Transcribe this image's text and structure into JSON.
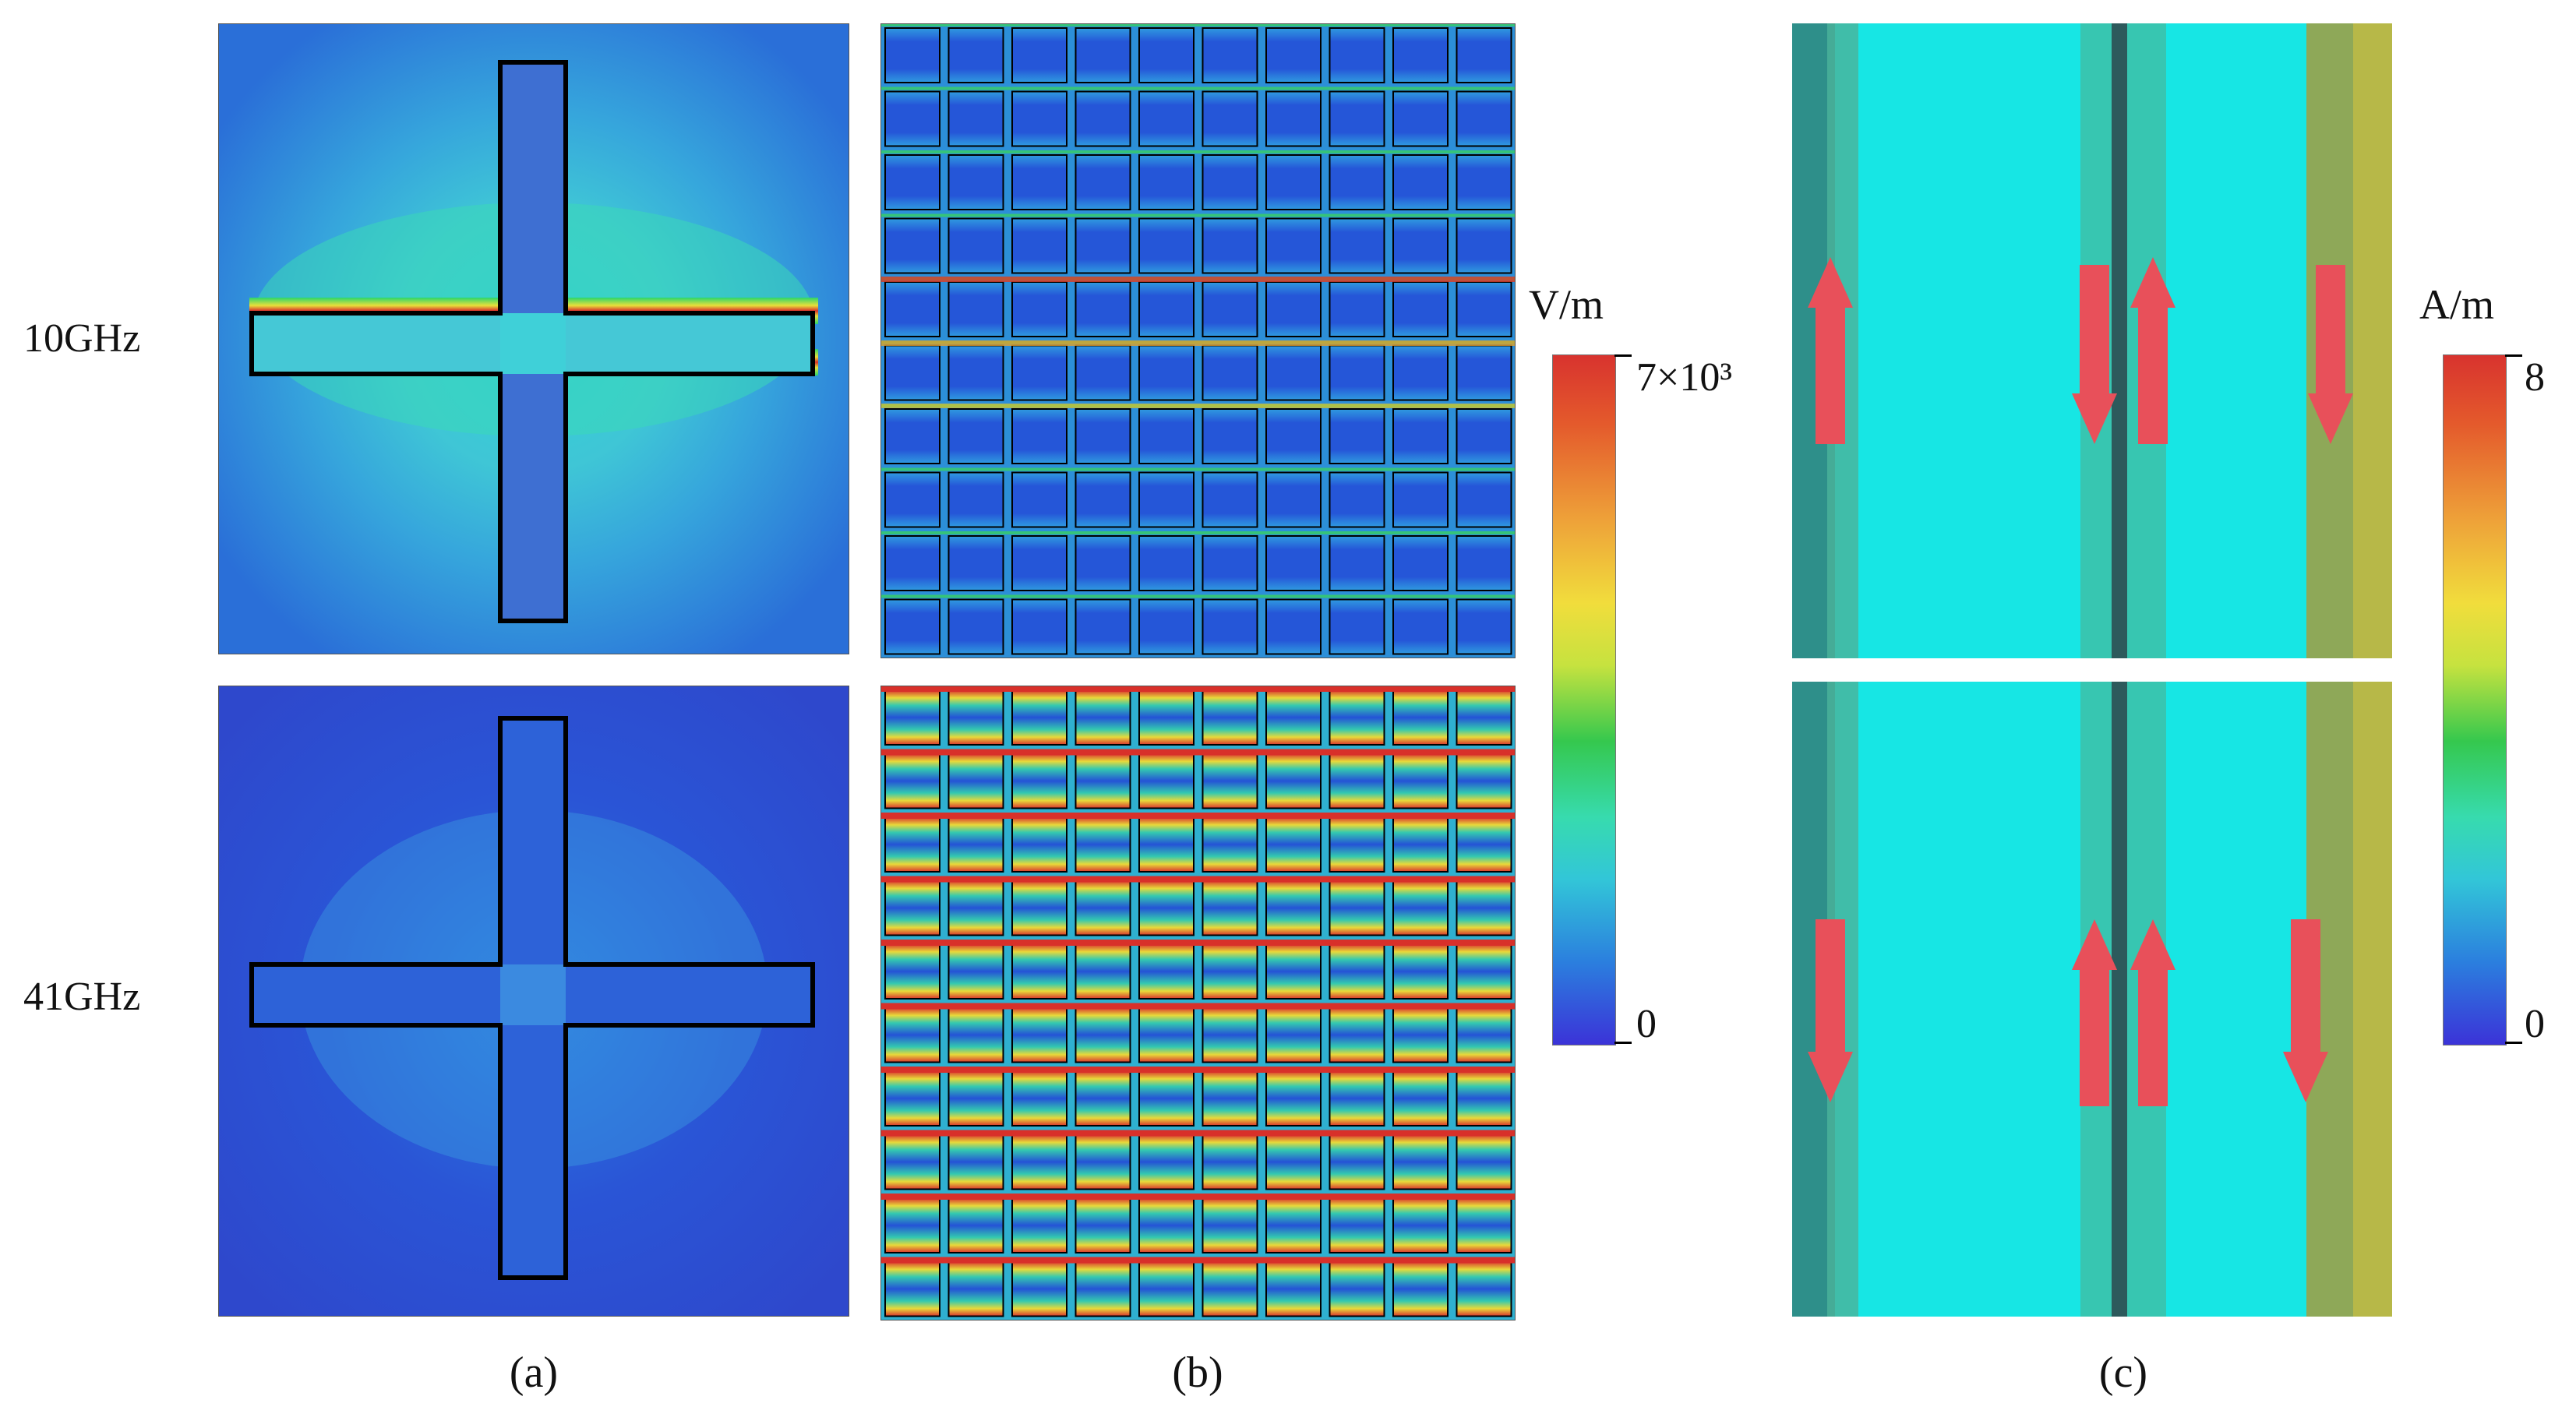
{
  "figure": {
    "row_labels": [
      "10GHz",
      "41GHz"
    ],
    "column_captions": [
      "(a)",
      "(b)",
      "(c)"
    ],
    "e_field_colorbar": {
      "unit": "V/m",
      "max_label": "7×10³",
      "min_label": "0"
    },
    "current_colorbar": {
      "unit": "A/m",
      "max_label": "8",
      "min_label": "0"
    },
    "panels": [
      {
        "id": "a-10",
        "content": "Electric field on cross-shaped unit cell at 10GHz: strong field along horizontal arm edges"
      },
      {
        "id": "a-41",
        "content": "Electric field on cross-shaped unit cell at 41GHz: weak field"
      },
      {
        "id": "b-10",
        "content": "Electric field over 10x10 grid array at 10GHz"
      },
      {
        "id": "b-41",
        "content": "Electric field over 10x10 grid array at 41GHz: strong red horizontal bands"
      },
      {
        "id": "c-10",
        "content": "Surface current side view at 10GHz",
        "arrows": [
          "up",
          "down",
          "up",
          "down"
        ]
      },
      {
        "id": "c-41",
        "content": "Surface current side view at 41GHz",
        "arrows": [
          "down",
          "up",
          "up",
          "down"
        ]
      }
    ],
    "colors": {
      "field_low": "#2a55d8",
      "field_high": "#d8332e",
      "arrow": "#e8505a",
      "current_bg": "#17e6e4"
    }
  }
}
